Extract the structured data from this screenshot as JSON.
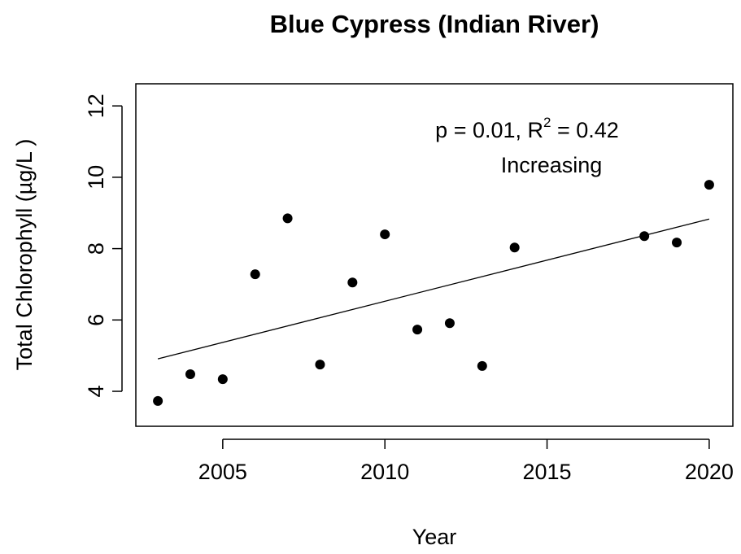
{
  "chart_data": {
    "type": "scatter",
    "title": "Blue Cypress (Indian River)",
    "x_label": "Year",
    "y_label": "Total Chlorophyll (µg/L )",
    "x": [
      2003,
      2004,
      2005,
      2006,
      2007,
      2008,
      2009,
      2010,
      2011,
      2012,
      2013,
      2014,
      2018,
      2019,
      2020
    ],
    "values": [
      3.73,
      4.48,
      4.34,
      7.28,
      8.85,
      4.75,
      7.05,
      8.4,
      5.73,
      5.91,
      4.71,
      8.03,
      8.35,
      8.17,
      9.79
    ],
    "color": "#000000",
    "trend_line": {
      "x": [
        2003,
        2020
      ],
      "values": [
        4.91,
        8.83
      ],
      "color": "#000000"
    },
    "annotation": {
      "text_before": "p = 0.01, R",
      "superscript": "2",
      "text_after": " = 0.42",
      "direction": "Increasing"
    },
    "xlim": [
      2002.32,
      2020.73
    ],
    "xticks": [
      2005,
      2010,
      2015,
      2020
    ],
    "ylim": [
      3.02,
      12.62
    ],
    "yticks": [
      4,
      6,
      8,
      10,
      12
    ]
  }
}
